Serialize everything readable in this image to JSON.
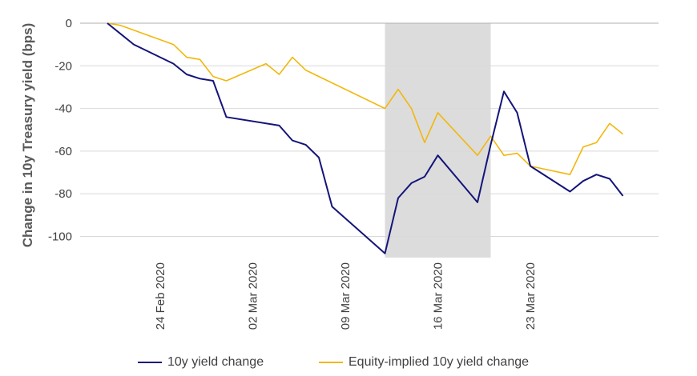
{
  "chart_data": {
    "type": "line",
    "ylabel": "Change in 10y Treasury yield (bps)",
    "ylim": [
      -110,
      0
    ],
    "yticks": [
      0,
      -20,
      -40,
      -60,
      -80,
      -100
    ],
    "xlim": [
      "2020-02-20",
      "2020-03-31"
    ],
    "xticks": [
      "2020-02-24",
      "2020-03-02",
      "2020-03-09",
      "2020-03-16",
      "2020-03-23"
    ],
    "xtick_labels": [
      "24 Feb 2020",
      "02 Mar 2020",
      "09 Mar 2020",
      "16 Mar 2020",
      "23 Mar 2020"
    ],
    "grid": true,
    "legend_placement": "bottom",
    "shaded_region": {
      "start": "2020-03-12",
      "end": "2020-03-20"
    },
    "series": [
      {
        "name": "10y yield change",
        "color": "#14147a",
        "points": [
          [
            "2020-02-20",
            0
          ],
          [
            "2020-02-21",
            -5
          ],
          [
            "2020-02-22",
            -10
          ],
          [
            "2020-02-25",
            -19
          ],
          [
            "2020-02-26",
            -24
          ],
          [
            "2020-02-27",
            -26
          ],
          [
            "2020-02-28",
            -27
          ],
          [
            "2020-02-29",
            -44
          ],
          [
            "2020-03-04",
            -48
          ],
          [
            "2020-03-05",
            -55
          ],
          [
            "2020-03-06",
            -57
          ],
          [
            "2020-03-07",
            -63
          ],
          [
            "2020-03-08",
            -86
          ],
          [
            "2020-03-12",
            -108
          ],
          [
            "2020-03-13",
            -82
          ],
          [
            "2020-03-14",
            -75
          ],
          [
            "2020-03-15",
            -72
          ],
          [
            "2020-03-16",
            -62
          ],
          [
            "2020-03-19",
            -84
          ],
          [
            "2020-03-20",
            -57
          ],
          [
            "2020-03-21",
            -32
          ],
          [
            "2020-03-22",
            -42
          ],
          [
            "2020-03-23",
            -67
          ],
          [
            "2020-03-26",
            -79
          ],
          [
            "2020-03-27",
            -74
          ],
          [
            "2020-03-28",
            -71
          ],
          [
            "2020-03-29",
            -73
          ],
          [
            "2020-03-30",
            -81
          ]
        ]
      },
      {
        "name": "Equity-implied 10y yield change",
        "color": "#f2b70c",
        "points": [
          [
            "2020-02-20",
            0
          ],
          [
            "2020-02-21",
            -1
          ],
          [
            "2020-02-25",
            -10
          ],
          [
            "2020-02-26",
            -16
          ],
          [
            "2020-02-27",
            -17
          ],
          [
            "2020-02-28",
            -25
          ],
          [
            "2020-02-29",
            -27
          ],
          [
            "2020-03-03",
            -19
          ],
          [
            "2020-03-04",
            -24
          ],
          [
            "2020-03-05",
            -16
          ],
          [
            "2020-03-06",
            -22
          ],
          [
            "2020-03-07",
            -25
          ],
          [
            "2020-03-12",
            -40
          ],
          [
            "2020-03-13",
            -31
          ],
          [
            "2020-03-14",
            -40
          ],
          [
            "2020-03-15",
            -56
          ],
          [
            "2020-03-16",
            -42
          ],
          [
            "2020-03-19",
            -62
          ],
          [
            "2020-03-20",
            -53
          ],
          [
            "2020-03-21",
            -62
          ],
          [
            "2020-03-22",
            -61
          ],
          [
            "2020-03-23",
            -67
          ],
          [
            "2020-03-26",
            -71
          ],
          [
            "2020-03-27",
            -58
          ],
          [
            "2020-03-28",
            -56
          ],
          [
            "2020-03-29",
            -47
          ],
          [
            "2020-03-30",
            -52
          ]
        ]
      }
    ]
  }
}
